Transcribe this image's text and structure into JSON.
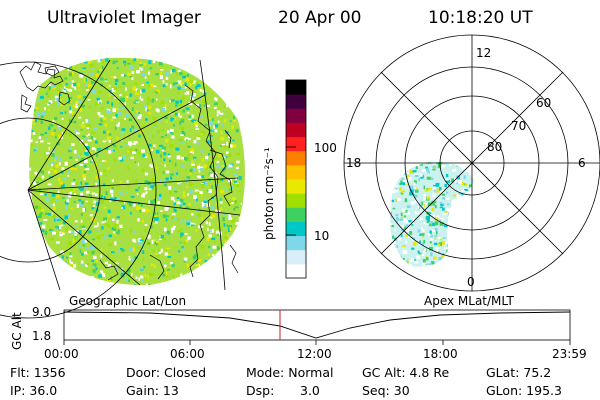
{
  "header": {
    "instrument": "Ultraviolet Imager",
    "date": "20 Apr 00",
    "time": "10:18:20 UT"
  },
  "colorbar": {
    "unit_label": "photon cm⁻²s⁻¹",
    "ticks": [
      {
        "label": "100",
        "value": 100
      },
      {
        "label": "10",
        "value": 10
      }
    ],
    "colors": [
      "#ffffff",
      "#d8eef8",
      "#7fd8e8",
      "#00c8c8",
      "#40d060",
      "#a0e000",
      "#e8e800",
      "#ffc000",
      "#ff8000",
      "#ff2020",
      "#c00020",
      "#800040",
      "#400040",
      "#000000"
    ]
  },
  "polar_plot": {
    "mlt_labels": [
      "12",
      "18",
      "6",
      "0"
    ],
    "lat_labels": [
      "60",
      "70",
      "80"
    ]
  },
  "map_labels": {
    "left": "Geographic Lat/Lon",
    "right": "Apex MLat/MLT"
  },
  "altitude_plot": {
    "ylabel": "GC Alt",
    "yticks": [
      "9.0",
      "1.8"
    ],
    "xticks": [
      "00:00",
      "06:00",
      "12:00",
      "18:00",
      "23:59"
    ],
    "marker_time": "10:18"
  },
  "info": {
    "flt": "Flt: 1356",
    "ip": "IP: 36.0",
    "door": "Door: Closed",
    "gain": "Gain: 13",
    "mode": "Mode: Normal",
    "dsp_label": "Dsp:",
    "dsp_value": "3.0",
    "gcalt": "GC Alt: 4.8 Re",
    "seq": "Seq: 30",
    "glat": "GLat: 75.2",
    "glon": "GLon: 195.3"
  }
}
